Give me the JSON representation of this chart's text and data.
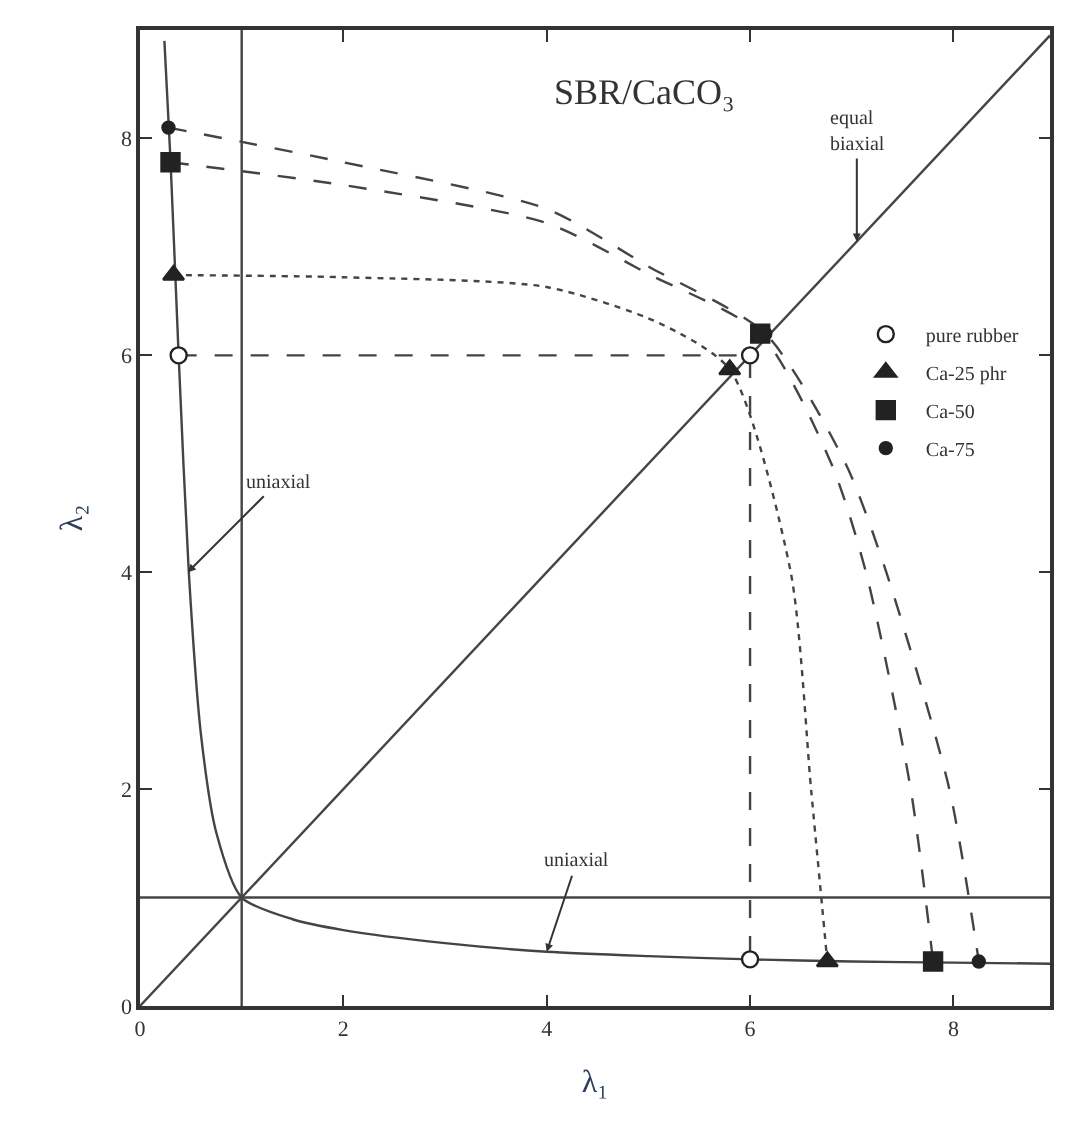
{
  "chart_data": {
    "type": "scatter",
    "title": "SBR/CaCO₃",
    "xlabel": "λ₁",
    "ylabel": "λ₂",
    "xlim": [
      0,
      8.95
    ],
    "ylim": [
      0,
      9
    ],
    "xticks": [
      0,
      2,
      4,
      6,
      8
    ],
    "yticks": [
      0,
      2,
      4,
      6,
      8
    ],
    "legend": "right",
    "series": [
      {
        "type": "line",
        "color": "#444444",
        "line_style": "solid",
        "marker": "none",
        "x": [
          0,
          8.95
        ],
        "values": [
          0,
          8.95
        ]
      },
      {
        "type": "line",
        "color": "#444444",
        "line_style": "solid",
        "marker": "none",
        "x": [
          0.24,
          0.3,
          0.38,
          0.48,
          0.6,
          0.75,
          1,
          1.5,
          2,
          3,
          4,
          5,
          6,
          7,
          8,
          8.95
        ],
        "values": [
          8.9,
          7.8,
          6,
          4,
          2.5,
          1.6,
          1,
          0.8,
          0.7,
          0.58,
          0.5,
          0.46,
          0.43,
          0.41,
          0.4,
          0.39
        ]
      },
      {
        "type": "line",
        "color": "#444444",
        "line_style": "solid",
        "marker": "none",
        "x": [
          1,
          1
        ],
        "values": [
          0,
          9
        ]
      },
      {
        "type": "line",
        "color": "#444444",
        "line_style": "solid",
        "marker": "none",
        "x": [
          0,
          8.95
        ],
        "values": [
          1,
          1
        ]
      },
      {
        "type": "line",
        "color": "#444444",
        "line_style": "dashed",
        "marker": "none",
        "x": [
          0.38,
          6,
          6
        ],
        "values": [
          6,
          6,
          0.43
        ]
      },
      {
        "type": "line",
        "color": "#444444",
        "line_style": "dotted",
        "marker": "none",
        "x": [
          0.33,
          2,
          4,
          5.1,
          5.8,
          6.4,
          6.6,
          6.76
        ],
        "values": [
          6.74,
          6.72,
          6.63,
          6.3,
          5.87,
          4,
          2,
          0.41
        ]
      },
      {
        "type": "line",
        "color": "#444444",
        "line_style": "dashed",
        "marker": "none",
        "x": [
          0.3,
          2,
          4,
          5,
          6.1,
          6.8,
          7.14,
          7.58,
          7.8
        ],
        "values": [
          7.78,
          7.57,
          7.22,
          6.75,
          6.2,
          5,
          4,
          2,
          0.41
        ]
      },
      {
        "type": "line",
        "color": "#444444",
        "line_style": "dashed",
        "marker": "none",
        "x": [
          0.28,
          2,
          4,
          5,
          6.15,
          6.94,
          7.34,
          7.96,
          8.25
        ],
        "values": [
          8.1,
          7.78,
          7.35,
          6.82,
          6.2,
          5,
          4,
          2,
          0.41
        ]
      },
      {
        "name": "pure rubber",
        "color": "#ffffff",
        "marker": "circle",
        "x": [
          0.38,
          6.0,
          6.0
        ],
        "values": [
          6.0,
          6.0,
          0.43
        ]
      },
      {
        "name": "Ca-25 phr",
        "color": "#222222",
        "marker": "triangle",
        "x": [
          0.33,
          5.8,
          6.76
        ],
        "values": [
          6.74,
          5.87,
          0.41
        ]
      },
      {
        "name": "Ca-50",
        "color": "#222222",
        "marker": "square",
        "x": [
          0.3,
          6.1,
          7.8
        ],
        "values": [
          7.78,
          6.2,
          0.41
        ]
      },
      {
        "name": "Ca-75",
        "color": "#222222",
        "marker": "circle",
        "x": [
          0.28,
          6.15,
          8.25
        ],
        "values": [
          8.1,
          6.2,
          0.41
        ]
      }
    ],
    "annotations": [
      {
        "text": "uniaxial",
        "x": 0.47,
        "y": 4
      },
      {
        "text": "uniaxial",
        "x": 4.0,
        "y": 0.5
      },
      {
        "text": "equal\nbiaxial",
        "x": 7.05,
        "y": 7.05
      }
    ]
  }
}
